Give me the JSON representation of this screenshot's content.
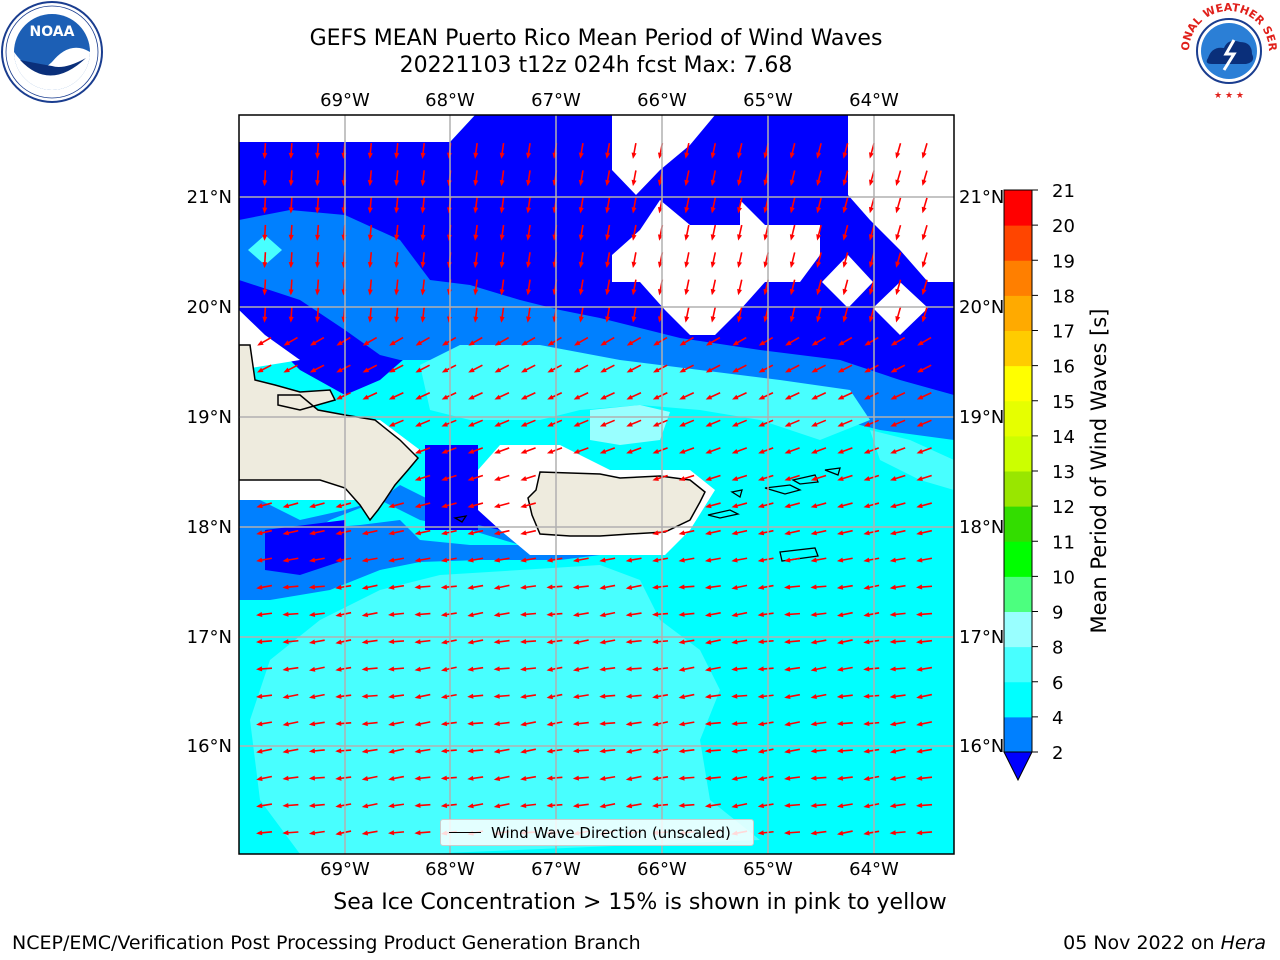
{
  "header": {
    "title_line1": "GEFS MEAN Puerto Rico Mean Period of Wind Waves",
    "title_line2": "20221103 t12z 024h fcst   Max: 7.68"
  },
  "logos": {
    "left": {
      "icon": "noaa-logo",
      "text": "NOAA",
      "ring_text": "NATIONAL OCEANIC AND ATMOSPHERIC ADMINISTRATION · U.S. DEPARTMENT OF COMMERCE"
    },
    "right": {
      "icon": "nws-logo",
      "ring_text": "NATIONAL WEATHER SERVICE"
    }
  },
  "map": {
    "lon_labels": [
      "69°W",
      "68°W",
      "67°W",
      "66°W",
      "65°W",
      "64°W"
    ],
    "lat_labels": [
      "21°N",
      "20°N",
      "19°N",
      "18°N",
      "17°N",
      "16°N"
    ],
    "legend_label": "Wind Wave Direction (unscaled)",
    "colors": {
      "land": "#eeebde",
      "blue": "#0000ff",
      "mid_blue": "#0080ff",
      "cyan": "#00ffff",
      "light_cyan": "#48ffff",
      "pale_cyan": "#99ffff",
      "arrow": "#ff0000",
      "grid": "#b0b0b0"
    }
  },
  "colorbar": {
    "label": "Mean Period of Wind Waves [s]",
    "ticks": [
      "2",
      "4",
      "6",
      "8",
      "9",
      "10",
      "11",
      "12",
      "13",
      "14",
      "15",
      "16",
      "17",
      "18",
      "19",
      "20",
      "21"
    ],
    "colors": [
      "#0000ff",
      "#0080ff",
      "#00ffff",
      "#48ffff",
      "#99ffff",
      "#4cff7f",
      "#00ff00",
      "#33dd00",
      "#99e600",
      "#ccff00",
      "#e6ff00",
      "#ffff00",
      "#ffcc00",
      "#ffaa00",
      "#ff7f00",
      "#ff4500",
      "#ff0000"
    ]
  },
  "caption": "Sea Ice Concentration > 15% is shown in pink to yellow",
  "footer": {
    "left": "NCEP/EMC/Verification Post Processing Product Generation Branch",
    "right_date": "05 Nov 2022 on ",
    "right_host": "Hera"
  }
}
